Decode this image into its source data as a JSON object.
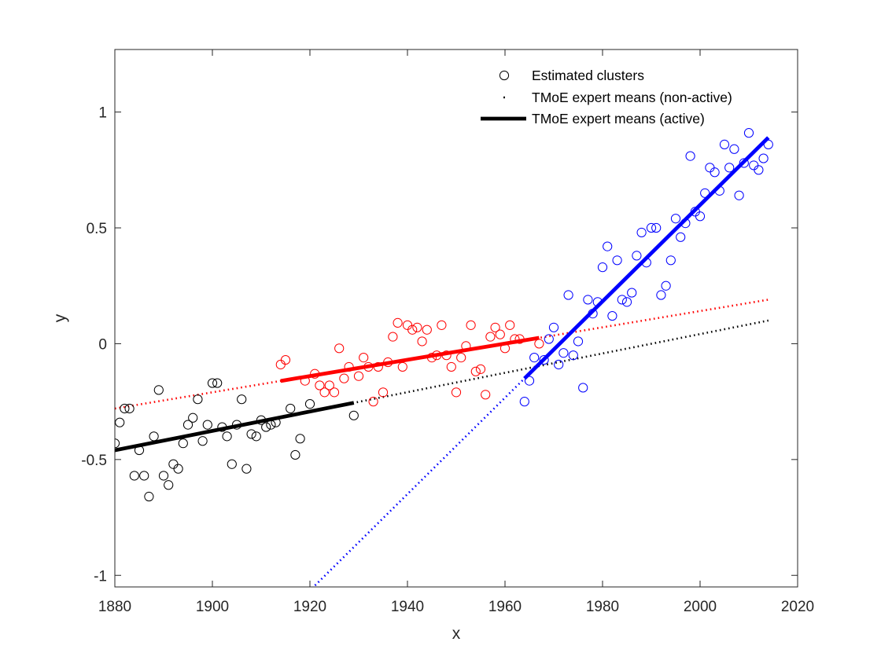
{
  "chart_data": {
    "type": "scatter",
    "xlabel": "x",
    "ylabel": "y",
    "xlim": [
      1880,
      2020
    ],
    "ylim": [
      -1.05,
      1.27
    ],
    "xticks": [
      1880,
      1900,
      1920,
      1940,
      1960,
      1980,
      2000,
      2020
    ],
    "yticks": [
      -1,
      -0.5,
      0,
      0.5,
      1
    ],
    "xtick_labels": [
      "1880",
      "1900",
      "1920",
      "1940",
      "1960",
      "1980",
      "2000",
      "2020"
    ],
    "ytick_labels": [
      "-1",
      "-0.5",
      "0",
      "0.5",
      "1"
    ],
    "grid": false,
    "legend": {
      "placement": "top-right",
      "entries": [
        {
          "label": "Estimated clusters",
          "marker": "circle"
        },
        {
          "label": "TMoE expert means (non-active)",
          "marker": "dotted-line"
        },
        {
          "label": "TMoE expert means (active)",
          "marker": "solid-line"
        }
      ]
    },
    "colors": {
      "cluster1": "#000000",
      "cluster2": "#ff0000",
      "cluster3": "#0000ff"
    },
    "clusters": [
      {
        "color": "#000000",
        "points": [
          [
            1880,
            -0.43
          ],
          [
            1881,
            -0.34
          ],
          [
            1882,
            -0.28
          ],
          [
            1883,
            -0.28
          ],
          [
            1884,
            -0.57
          ],
          [
            1885,
            -0.46
          ],
          [
            1886,
            -0.57
          ],
          [
            1887,
            -0.66
          ],
          [
            1888,
            -0.4
          ],
          [
            1889,
            -0.2
          ],
          [
            1890,
            -0.57
          ],
          [
            1891,
            -0.61
          ],
          [
            1892,
            -0.52
          ],
          [
            1893,
            -0.54
          ],
          [
            1894,
            -0.43
          ],
          [
            1895,
            -0.35
          ],
          [
            1896,
            -0.32
          ],
          [
            1897,
            -0.24
          ],
          [
            1898,
            -0.42
          ],
          [
            1899,
            -0.35
          ],
          [
            1900,
            -0.17
          ],
          [
            1901,
            -0.17
          ],
          [
            1902,
            -0.36
          ],
          [
            1903,
            -0.4
          ],
          [
            1904,
            -0.52
          ],
          [
            1905,
            -0.35
          ],
          [
            1906,
            -0.24
          ],
          [
            1907,
            -0.54
          ],
          [
            1908,
            -0.39
          ],
          [
            1909,
            -0.4
          ],
          [
            1910,
            -0.33
          ],
          [
            1911,
            -0.36
          ],
          [
            1912,
            -0.35
          ],
          [
            1913,
            -0.34
          ],
          [
            1916,
            -0.28
          ],
          [
            1917,
            -0.48
          ],
          [
            1918,
            -0.41
          ],
          [
            1920,
            -0.26
          ],
          [
            1929,
            -0.31
          ]
        ]
      },
      {
        "color": "#ff0000",
        "points": [
          [
            1914,
            -0.09
          ],
          [
            1915,
            -0.07
          ],
          [
            1919,
            -0.16
          ],
          [
            1921,
            -0.13
          ],
          [
            1922,
            -0.18
          ],
          [
            1923,
            -0.21
          ],
          [
            1924,
            -0.18
          ],
          [
            1925,
            -0.21
          ],
          [
            1926,
            -0.02
          ],
          [
            1927,
            -0.15
          ],
          [
            1928,
            -0.1
          ],
          [
            1930,
            -0.14
          ],
          [
            1931,
            -0.06
          ],
          [
            1932,
            -0.1
          ],
          [
            1933,
            -0.25
          ],
          [
            1934,
            -0.1
          ],
          [
            1935,
            -0.21
          ],
          [
            1936,
            -0.08
          ],
          [
            1937,
            0.03
          ],
          [
            1938,
            0.09
          ],
          [
            1939,
            -0.1
          ],
          [
            1940,
            0.08
          ],
          [
            1941,
            0.06
          ],
          [
            1942,
            0.07
          ],
          [
            1943,
            0.01
          ],
          [
            1944,
            0.06
          ],
          [
            1945,
            -0.06
          ],
          [
            1946,
            -0.05
          ],
          [
            1947,
            0.08
          ],
          [
            1948,
            -0.05
          ],
          [
            1949,
            -0.1
          ],
          [
            1950,
            -0.21
          ],
          [
            1951,
            -0.06
          ],
          [
            1952,
            -0.01
          ],
          [
            1953,
            0.08
          ],
          [
            1954,
            -0.12
          ],
          [
            1955,
            -0.11
          ],
          [
            1956,
            -0.22
          ],
          [
            1957,
            0.03
          ],
          [
            1958,
            0.07
          ],
          [
            1959,
            0.04
          ],
          [
            1960,
            -0.02
          ],
          [
            1961,
            0.08
          ],
          [
            1962,
            0.02
          ],
          [
            1963,
            0.02
          ],
          [
            1967,
            0.0
          ]
        ]
      },
      {
        "color": "#0000ff",
        "points": [
          [
            1964,
            -0.25
          ],
          [
            1965,
            -0.16
          ],
          [
            1966,
            -0.06
          ],
          [
            1968,
            -0.07
          ],
          [
            1969,
            0.02
          ],
          [
            1970,
            0.07
          ],
          [
            1971,
            -0.09
          ],
          [
            1972,
            -0.04
          ],
          [
            1973,
            0.21
          ],
          [
            1974,
            -0.05
          ],
          [
            1975,
            0.01
          ],
          [
            1976,
            -0.19
          ],
          [
            1977,
            0.19
          ],
          [
            1978,
            0.13
          ],
          [
            1979,
            0.18
          ],
          [
            1980,
            0.33
          ],
          [
            1981,
            0.42
          ],
          [
            1982,
            0.12
          ],
          [
            1983,
            0.36
          ],
          [
            1984,
            0.19
          ],
          [
            1985,
            0.18
          ],
          [
            1986,
            0.22
          ],
          [
            1987,
            0.38
          ],
          [
            1988,
            0.48
          ],
          [
            1989,
            0.35
          ],
          [
            1990,
            0.5
          ],
          [
            1991,
            0.5
          ],
          [
            1992,
            0.21
          ],
          [
            1993,
            0.25
          ],
          [
            1994,
            0.36
          ],
          [
            1995,
            0.54
          ],
          [
            1996,
            0.46
          ],
          [
            1997,
            0.52
          ],
          [
            1998,
            0.81
          ],
          [
            1999,
            0.57
          ],
          [
            2000,
            0.55
          ],
          [
            2001,
            0.65
          ],
          [
            2002,
            0.76
          ],
          [
            2003,
            0.74
          ],
          [
            2004,
            0.66
          ],
          [
            2005,
            0.86
          ],
          [
            2006,
            0.76
          ],
          [
            2007,
            0.84
          ],
          [
            2008,
            0.64
          ],
          [
            2009,
            0.78
          ],
          [
            2010,
            0.91
          ],
          [
            2011,
            0.77
          ],
          [
            2012,
            0.75
          ],
          [
            2013,
            0.8
          ],
          [
            2014,
            0.86
          ]
        ]
      }
    ],
    "expert_means": [
      {
        "color": "#000000",
        "line": [
          [
            1880,
            -0.46
          ],
          [
            2014,
            0.1
          ]
        ],
        "active_range": [
          1880,
          1929
        ]
      },
      {
        "color": "#ff0000",
        "line": [
          [
            1880,
            -0.28
          ],
          [
            2014,
            0.19
          ]
        ],
        "active_range": [
          1914,
          1967
        ]
      },
      {
        "color": "#0000ff",
        "line": [
          [
            1964,
            -0.15
          ],
          [
            2014,
            0.89
          ]
        ],
        "active_range": [
          1964,
          2014
        ],
        "line_start": 1920.4
      }
    ]
  }
}
